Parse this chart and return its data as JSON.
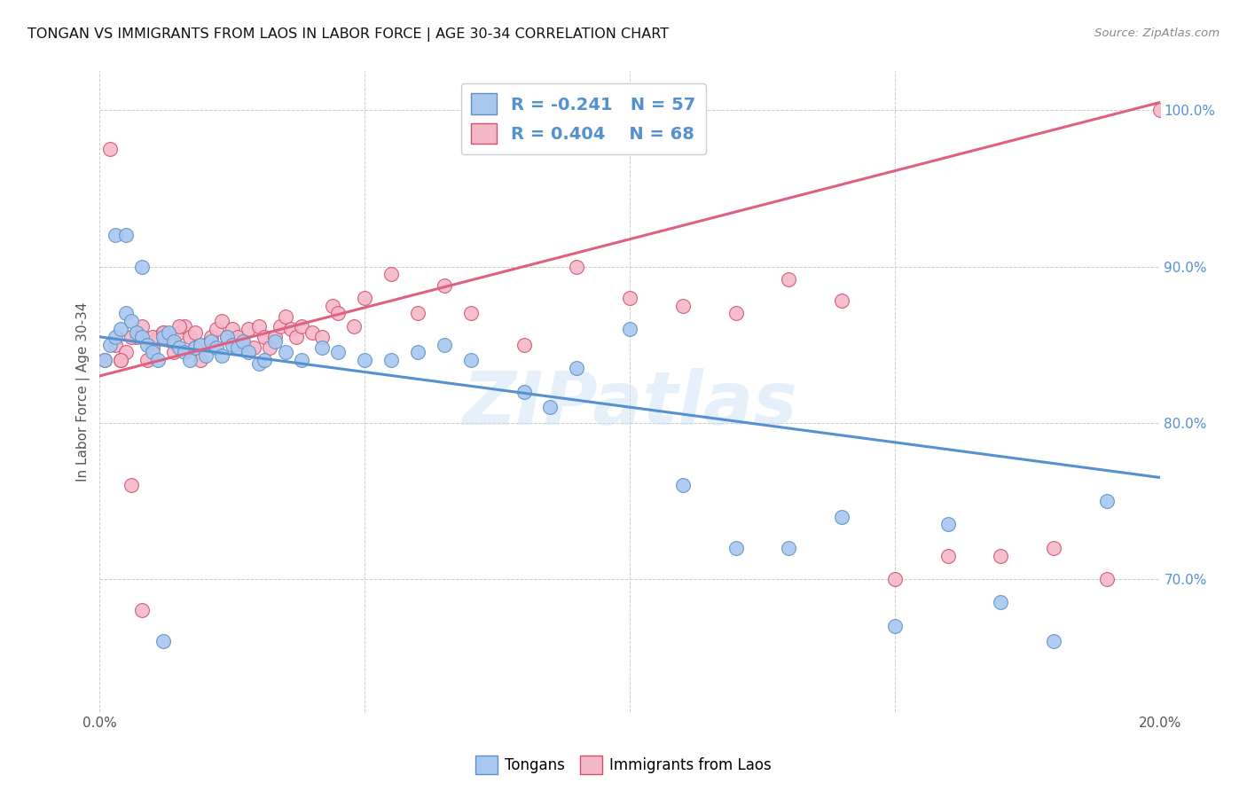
{
  "title": "TONGAN VS IMMIGRANTS FROM LAOS IN LABOR FORCE | AGE 30-34 CORRELATION CHART",
  "source": "Source: ZipAtlas.com",
  "ylabel": "In Labor Force | Age 30-34",
  "x_min": 0.0,
  "x_max": 0.2,
  "y_min": 0.615,
  "y_max": 1.025,
  "x_ticks": [
    0.0,
    0.05,
    0.1,
    0.15,
    0.2
  ],
  "x_tick_labels": [
    "0.0%",
    "",
    "",
    "",
    "20.0%"
  ],
  "y_ticks": [
    0.7,
    0.8,
    0.9,
    1.0
  ],
  "y_tick_labels": [
    "70.0%",
    "80.0%",
    "90.0%",
    "100.0%"
  ],
  "blue_R": -0.241,
  "blue_N": 57,
  "pink_R": 0.404,
  "pink_N": 68,
  "blue_color": "#A8C8F0",
  "pink_color": "#F5B8C8",
  "blue_line_color": "#5590D0",
  "pink_line_color": "#E06080",
  "blue_edge_color": "#6090C0",
  "pink_edge_color": "#D05070",
  "watermark": "ZIPatlas",
  "legend_label_blue": "Tongans",
  "legend_label_pink": "Immigrants from Laos",
  "blue_line_x0": 0.0,
  "blue_line_y0": 0.855,
  "blue_line_x1": 0.2,
  "blue_line_y1": 0.765,
  "pink_line_x0": 0.0,
  "pink_line_y0": 0.83,
  "pink_line_x1": 0.2,
  "pink_line_y1": 1.005,
  "blue_scatter_x": [
    0.001,
    0.002,
    0.003,
    0.004,
    0.005,
    0.006,
    0.007,
    0.008,
    0.009,
    0.01,
    0.011,
    0.012,
    0.013,
    0.014,
    0.015,
    0.016,
    0.017,
    0.018,
    0.019,
    0.02,
    0.021,
    0.022,
    0.023,
    0.024,
    0.025,
    0.026,
    0.027,
    0.028,
    0.03,
    0.031,
    0.033,
    0.035,
    0.038,
    0.042,
    0.045,
    0.05,
    0.055,
    0.06,
    0.065,
    0.07,
    0.08,
    0.085,
    0.09,
    0.1,
    0.11,
    0.12,
    0.13,
    0.14,
    0.15,
    0.16,
    0.17,
    0.18,
    0.19,
    0.003,
    0.005,
    0.008,
    0.012
  ],
  "blue_scatter_y": [
    0.84,
    0.85,
    0.855,
    0.86,
    0.87,
    0.865,
    0.858,
    0.855,
    0.85,
    0.845,
    0.84,
    0.855,
    0.858,
    0.852,
    0.848,
    0.845,
    0.84,
    0.848,
    0.85,
    0.843,
    0.852,
    0.848,
    0.843,
    0.855,
    0.85,
    0.848,
    0.852,
    0.845,
    0.838,
    0.84,
    0.852,
    0.845,
    0.84,
    0.848,
    0.845,
    0.84,
    0.84,
    0.845,
    0.85,
    0.84,
    0.82,
    0.81,
    0.835,
    0.86,
    0.76,
    0.72,
    0.72,
    0.74,
    0.67,
    0.735,
    0.685,
    0.66,
    0.75,
    0.92,
    0.92,
    0.9,
    0.66
  ],
  "pink_scatter_x": [
    0.001,
    0.002,
    0.003,
    0.004,
    0.005,
    0.006,
    0.007,
    0.008,
    0.009,
    0.01,
    0.011,
    0.012,
    0.013,
    0.014,
    0.015,
    0.016,
    0.017,
    0.018,
    0.019,
    0.02,
    0.021,
    0.022,
    0.023,
    0.024,
    0.025,
    0.026,
    0.027,
    0.028,
    0.029,
    0.03,
    0.031,
    0.032,
    0.033,
    0.034,
    0.035,
    0.036,
    0.037,
    0.038,
    0.04,
    0.042,
    0.044,
    0.045,
    0.048,
    0.05,
    0.055,
    0.06,
    0.065,
    0.07,
    0.08,
    0.09,
    0.1,
    0.11,
    0.12,
    0.13,
    0.14,
    0.15,
    0.16,
    0.17,
    0.18,
    0.19,
    0.2,
    0.004,
    0.006,
    0.008,
    0.01,
    0.012,
    0.015,
    0.018
  ],
  "pink_scatter_y": [
    0.84,
    0.975,
    0.85,
    0.84,
    0.845,
    0.76,
    0.855,
    0.68,
    0.84,
    0.848,
    0.855,
    0.858,
    0.853,
    0.845,
    0.858,
    0.862,
    0.855,
    0.848,
    0.84,
    0.85,
    0.855,
    0.86,
    0.865,
    0.855,
    0.86,
    0.855,
    0.85,
    0.86,
    0.848,
    0.862,
    0.855,
    0.848,
    0.855,
    0.862,
    0.868,
    0.86,
    0.855,
    0.862,
    0.858,
    0.855,
    0.875,
    0.87,
    0.862,
    0.88,
    0.895,
    0.87,
    0.888,
    0.87,
    0.85,
    0.9,
    0.88,
    0.875,
    0.87,
    0.892,
    0.878,
    0.7,
    0.715,
    0.715,
    0.72,
    0.7,
    1.0,
    0.84,
    0.855,
    0.862,
    0.855,
    0.858,
    0.862,
    0.858
  ]
}
